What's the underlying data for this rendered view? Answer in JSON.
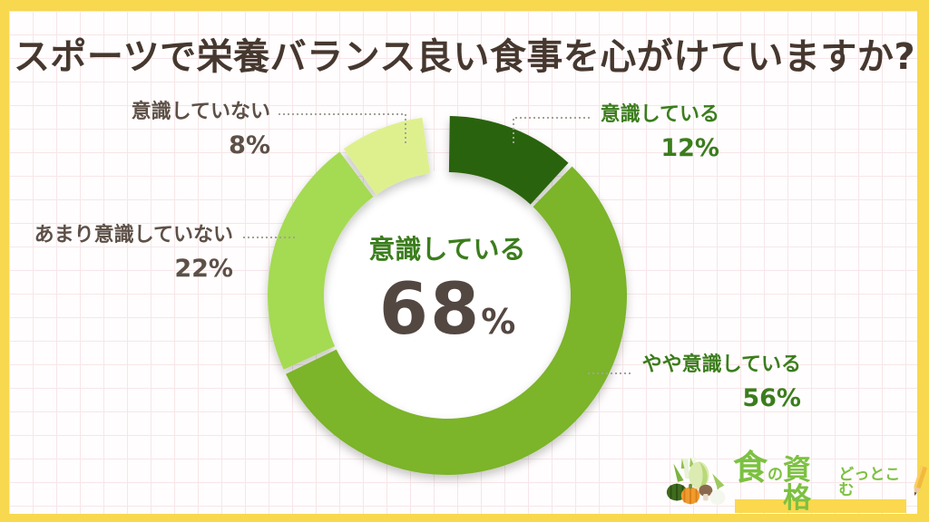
{
  "page": {
    "title": "スポーツで栄養バランス良い食事を心がけていますか?",
    "frame_color": "#f8d84e",
    "title_color": "#46382f"
  },
  "chart_data": {
    "type": "pie",
    "variant": "donut",
    "title": "スポーツで栄養バランス良い食事を心がけていますか?",
    "start_angle_deg": 0,
    "direction": "clockwise",
    "legend_position": "callout-labels",
    "slices": [
      {
        "label": "意識している",
        "value": 12,
        "pct_label": "12%",
        "color": "#2c630e",
        "label_color": "#3b7d1d"
      },
      {
        "label": "やや意識している",
        "value": 56,
        "pct_label": "56%",
        "color": "#7cb42c",
        "label_color": "#3b7d1d"
      },
      {
        "label": "あまり意識していない",
        "value": 22,
        "pct_label": "22%",
        "color": "#a5da52",
        "label_color": "#5d5047"
      },
      {
        "label": "意識していない",
        "value": 8,
        "pct_label": "8%",
        "color": "#def08e",
        "label_color": "#5d5047"
      }
    ],
    "center_label": {
      "text": "意識している",
      "text_color": "#3b7d1d",
      "value": "68",
      "unit": "%",
      "value_color": "#534741"
    }
  },
  "logo": {
    "part1": "食",
    "part2": "の",
    "part3": "資格",
    "sub": "どっとこむ",
    "text_color": "#7cc141",
    "highlight_color": "#fbd84e"
  }
}
